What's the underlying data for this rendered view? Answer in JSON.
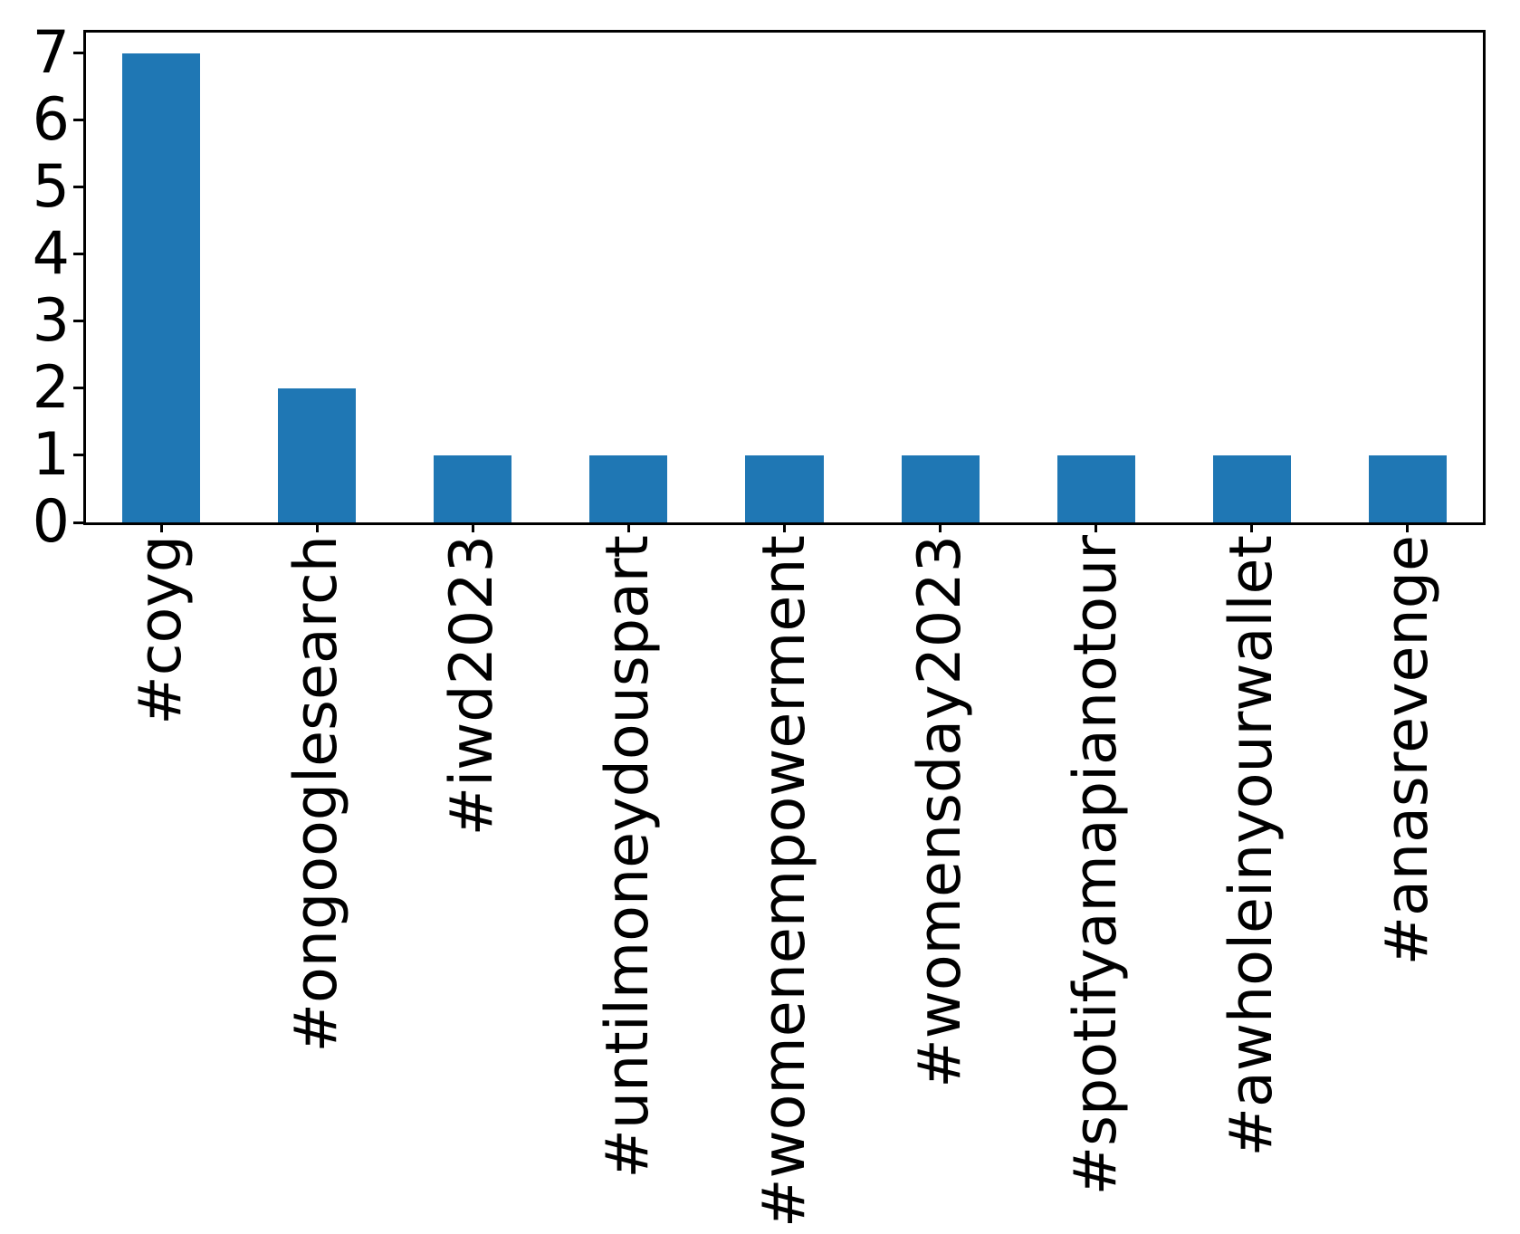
{
  "figure": {
    "background": "#ffffff"
  },
  "chart_data": {
    "type": "bar",
    "categories": [
      "#coyg",
      "#ongooglesearch",
      "#iwd2023",
      "#untilmoneydouspart",
      "#womenempowerment",
      "#womensday2023",
      "#spotifyamapianotour",
      "#awholeinyourwallet",
      "#anasrevenge"
    ],
    "values": [
      7,
      2,
      1,
      1,
      1,
      1,
      1,
      1,
      1
    ],
    "title": "",
    "xlabel": "",
    "ylabel": "",
    "ylim": [
      0,
      7.35
    ],
    "yticks": [
      0,
      1,
      2,
      3,
      4,
      5,
      6,
      7
    ],
    "x_tick_rotation": 90,
    "bar_color": "#1f77b4",
    "axis_color": "#000000",
    "grid": false,
    "legend": null
  }
}
